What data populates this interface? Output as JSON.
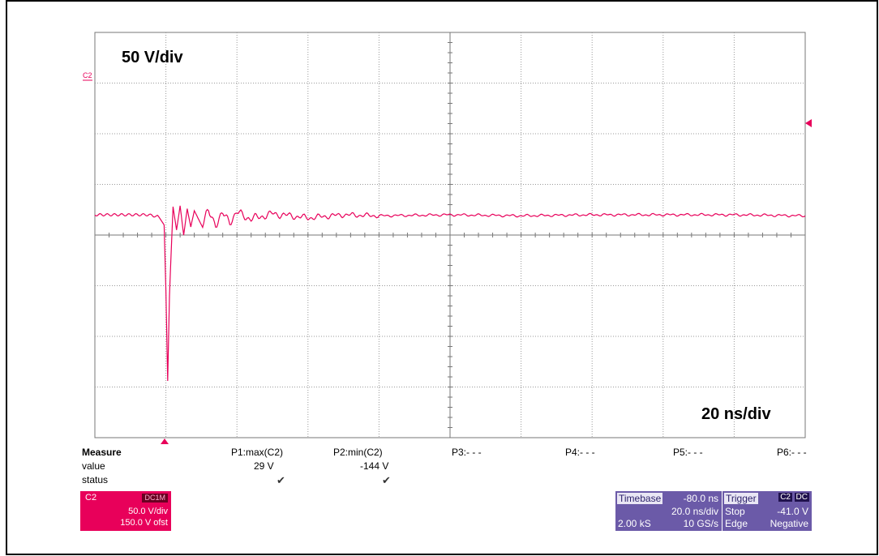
{
  "header": {
    "caption": ""
  },
  "chart_data": {
    "type": "line",
    "title": "",
    "volts_label": "50 V/div",
    "time_label": "20 ns/div",
    "channel_marker": "C2",
    "xlim": [
      -80,
      120
    ],
    "ylim": [
      -200,
      200
    ],
    "x_unit": "ns",
    "y_unit": "V",
    "grid": "on",
    "trace_color": "#e8005a",
    "series": [
      {
        "name": "C2",
        "x": [
          -80,
          -65,
          -62,
          -60.5,
          -60,
          -59.5,
          -59,
          -58,
          -57,
          -56,
          -55,
          -54,
          -53,
          -52,
          -50,
          -48,
          -46,
          -44,
          -42,
          -40,
          -36,
          -30,
          -20,
          -10,
          0,
          20,
          40,
          60,
          80,
          100,
          120
        ],
        "y": [
          20,
          20,
          18,
          10,
          -55,
          -144,
          -60,
          28,
          5,
          29,
          0,
          26,
          8,
          24,
          10,
          22,
          12,
          20,
          14,
          22,
          16,
          21,
          17,
          20,
          19,
          20,
          19,
          20,
          20,
          20,
          19
        ]
      }
    ]
  },
  "measure": {
    "header": "Measure",
    "row_value": "value",
    "row_status": "status",
    "params": [
      {
        "name": "P1:max(C2)",
        "value": "29 V",
        "status": "✔"
      },
      {
        "name": "P2:min(C2)",
        "value": "-144 V",
        "status": "✔"
      },
      {
        "name": "P3:- - -",
        "value": "",
        "status": ""
      },
      {
        "name": "P4:- - -",
        "value": "",
        "status": ""
      },
      {
        "name": "P5:- - -",
        "value": "",
        "status": ""
      },
      {
        "name": "P6:- - -",
        "value": "",
        "status": ""
      }
    ]
  },
  "channel_box": {
    "name": "C2",
    "coupling": "DC1M",
    "vdiv": "50.0 V/div",
    "offset": "150.0 V ofst"
  },
  "timebase": {
    "label": "Timebase",
    "delay": "-80.0 ns",
    "tdiv": "20.0 ns/div",
    "samples": "2.00 kS",
    "rate": "10 GS/s"
  },
  "trigger": {
    "label": "Trigger",
    "source": "C2",
    "coupling": "DC",
    "mode": "Stop",
    "level": "-41.0 V",
    "type": "Edge",
    "slope": "Negative"
  }
}
